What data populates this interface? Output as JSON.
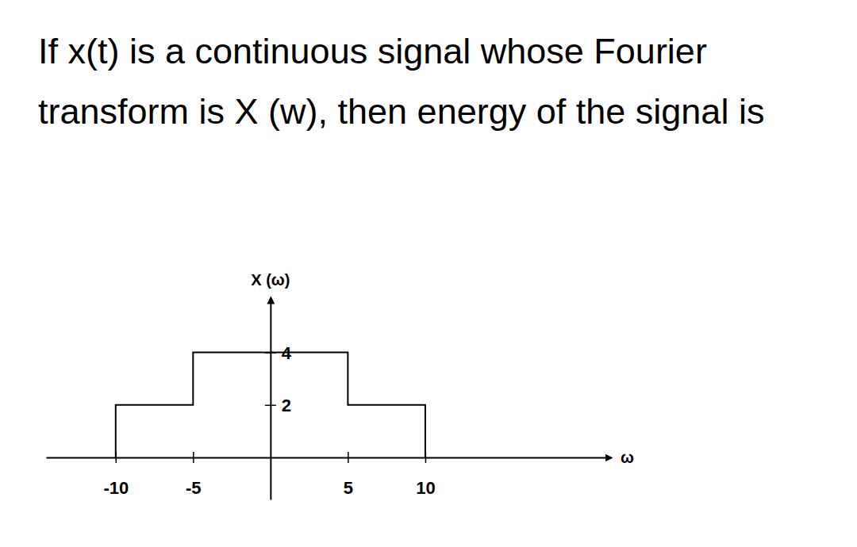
{
  "chart_data": {
    "type": "line",
    "title": "If x(t) is a continuous signal whose Fourier transform is X (w), then energy of the signal is",
    "x_label": "ω",
    "y_label": "X (ω)",
    "x": [
      -10,
      -10,
      -5,
      -5,
      5,
      5,
      10,
      10
    ],
    "values": [
      0,
      2,
      2,
      4,
      4,
      2,
      2,
      0
    ],
    "color": "#000000",
    "xlim": [
      -14.5,
      22
    ],
    "ylim": [
      -1.6,
      6.1
    ],
    "xticks": [
      -10,
      -5,
      5,
      10
    ],
    "yticks": [
      2,
      4
    ],
    "grid": false
  }
}
